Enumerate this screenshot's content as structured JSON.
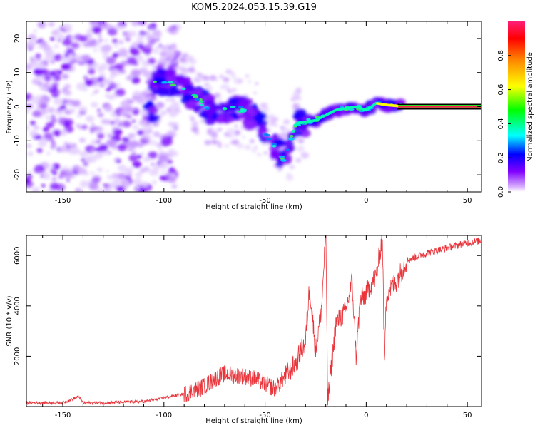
{
  "title": "KOM5.2024.053.15.39.G19",
  "chart_data": [
    {
      "type": "heatmap",
      "xlabel": "Height of straight line (km)",
      "ylabel": "Frequency (Hz)",
      "xlim": [
        -168,
        57
      ],
      "ylim": [
        -25,
        25
      ],
      "xticks": [
        -150,
        -100,
        -50,
        0,
        50
      ],
      "yticks": [
        -20,
        -10,
        0,
        10,
        20
      ],
      "colorbar": {
        "label": "Normalized spectral amplitude",
        "range": [
          0,
          1
        ],
        "ticks": [
          "0.0",
          "0.2",
          "0.4",
          "0.6",
          "0.8"
        ],
        "colormap": "gist_rainbow"
      },
      "ridge": [
        {
          "x": -105,
          "y": 8
        },
        {
          "x": -95,
          "y": 7
        },
        {
          "x": -85,
          "y": 3
        },
        {
          "x": -75,
          "y": -2
        },
        {
          "x": -65,
          "y": 0
        },
        {
          "x": -55,
          "y": -3
        },
        {
          "x": -45,
          "y": -12
        },
        {
          "x": -40,
          "y": -16
        },
        {
          "x": -35,
          "y": -5
        },
        {
          "x": -25,
          "y": -4
        },
        {
          "x": -15,
          "y": -1
        },
        {
          "x": -5,
          "y": 0
        },
        {
          "x": 0,
          "y": -1
        },
        {
          "x": 5,
          "y": 1
        },
        {
          "x": 10,
          "y": 0.5
        },
        {
          "x": 20,
          "y": 0
        },
        {
          "x": 57,
          "y": 0
        }
      ]
    },
    {
      "type": "line",
      "xlabel": "Height of straight line (km)",
      "ylabel": "SNR (10 * v/v)",
      "xlim": [
        -168,
        57
      ],
      "ylim": [
        0,
        6800
      ],
      "xticks": [
        -150,
        -100,
        -50,
        0,
        50
      ],
      "yticks": [
        2000,
        4000,
        6000
      ],
      "color": "#e8343a",
      "series": [
        {
          "x": [
            -168,
            -150,
            -142,
            -140,
            -130,
            -110,
            -100,
            -90,
            -80,
            -75,
            -70,
            -60,
            -55,
            -50,
            -45,
            -40,
            -35,
            -30,
            -28,
            -25,
            -22,
            -20,
            -19,
            -15,
            -10,
            -7,
            -5,
            -3,
            0,
            5,
            8,
            9,
            10,
            15,
            20,
            30,
            40,
            50,
            57
          ],
          "y": [
            150,
            150,
            400,
            150,
            150,
            200,
            350,
            500,
            800,
            1100,
            1300,
            1200,
            1100,
            900,
            700,
            1200,
            1700,
            2600,
            4800,
            2200,
            4000,
            7000,
            200,
            3300,
            3800,
            5000,
            2000,
            4200,
            4500,
            5200,
            6800,
            1800,
            4500,
            5000,
            5800,
            6100,
            6300,
            6500,
            6600
          ]
        }
      ]
    }
  ]
}
